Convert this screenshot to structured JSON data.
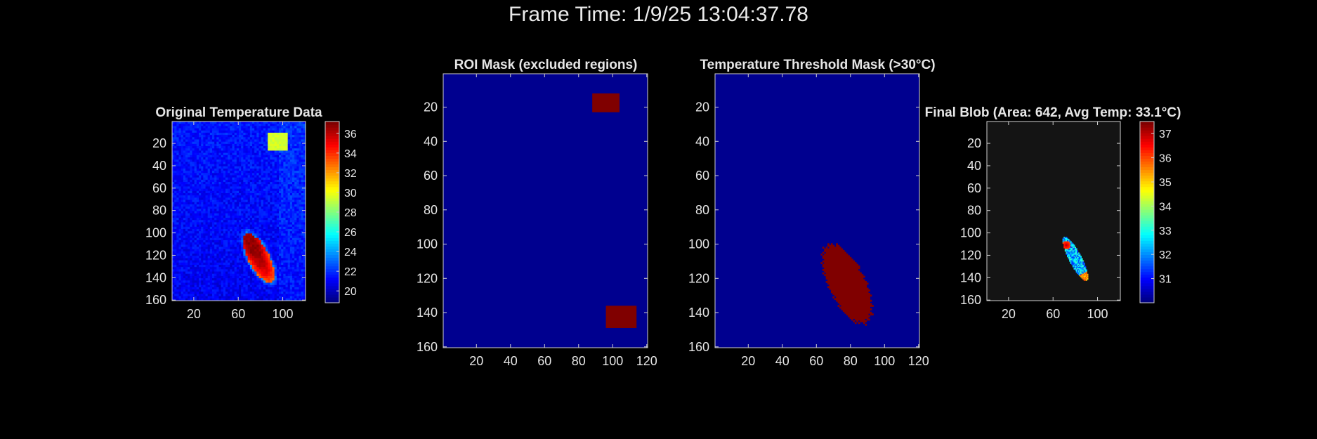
{
  "figure": {
    "supertitle": "Frame Time: 1/9/25 13:04:37.78",
    "background": "#000000"
  },
  "chart_data": [
    {
      "type": "heatmap",
      "title": "Original Temperature Data",
      "x_ticks": [
        20,
        60,
        100
      ],
      "y_ticks": [
        20,
        40,
        60,
        80,
        100,
        120,
        140,
        160
      ],
      "xlim": [
        0.5,
        120.5
      ],
      "ylim": [
        0.5,
        160.5
      ],
      "y_reversed": true,
      "colormap": "jet",
      "colorbar": {
        "ticks": [
          20,
          22,
          24,
          26,
          28,
          30,
          32,
          34,
          36
        ],
        "range": [
          18.8,
          37.2
        ]
      },
      "background_value": 21.5,
      "features": [
        {
          "kind": "rect",
          "label": "hot square",
          "x": [
            86,
            104
          ],
          "y": [
            10,
            26
          ],
          "value": 29.5
        },
        {
          "kind": "blob",
          "label": "hot object",
          "center_x": 78,
          "center_y": 122,
          "length": 48,
          "width": 19,
          "angle_deg": 62,
          "value_min": 30,
          "value_max": 36.8
        }
      ]
    },
    {
      "type": "heatmap",
      "title": "ROI Mask (excluded regions)",
      "x_ticks": [
        20,
        40,
        60,
        80,
        100,
        120
      ],
      "y_ticks": [
        20,
        40,
        60,
        80,
        100,
        120,
        140,
        160
      ],
      "xlim": [
        0.5,
        120.5
      ],
      "ylim": [
        0.5,
        160.5
      ],
      "y_reversed": true,
      "colors": {
        "off": "#00008f",
        "on": "#800000"
      },
      "regions": [
        {
          "label": "excluded region 1",
          "x": [
            88,
            104
          ],
          "y": [
            12,
            23
          ]
        },
        {
          "label": "excluded region 2",
          "x": [
            96,
            114
          ],
          "y": [
            136,
            149
          ]
        }
      ]
    },
    {
      "type": "heatmap",
      "title": "Temperature Threshold Mask (>30°C)",
      "x_ticks": [
        20,
        40,
        60,
        80,
        100,
        120
      ],
      "y_ticks": [
        20,
        40,
        60,
        80,
        100,
        120,
        140,
        160
      ],
      "xlim": [
        0.5,
        120.5
      ],
      "ylim": [
        0.5,
        160.5
      ],
      "y_reversed": true,
      "colors": {
        "off": "#00008f",
        "on": "#800000"
      },
      "regions": [
        {
          "label": "threshold blob",
          "kind": "blob",
          "center_x": 78,
          "center_y": 123,
          "length": 50,
          "width": 21,
          "angle_deg": 64
        }
      ]
    },
    {
      "type": "heatmap",
      "title": "Final Blob (Area: 642, Avg Temp: 33.1°C)",
      "x_ticks": [
        20,
        60,
        100
      ],
      "y_ticks": [
        20,
        40,
        60,
        80,
        100,
        120,
        140,
        160
      ],
      "xlim": [
        0.5,
        120.5
      ],
      "ylim": [
        0.5,
        160.5
      ],
      "y_reversed": true,
      "colormap": "jet",
      "background_color": "#141414",
      "colorbar": {
        "ticks": [
          31,
          32,
          33,
          34,
          35,
          36,
          37
        ],
        "range": [
          30,
          37.5
        ]
      },
      "blob": {
        "center_x": 80,
        "center_y": 123,
        "length": 44,
        "width": 11,
        "angle_deg": 62,
        "hot_spot": [
          72,
          111
        ],
        "hot_value": 37.1,
        "tail_value": 35.5,
        "body_value": 32.3
      }
    }
  ]
}
